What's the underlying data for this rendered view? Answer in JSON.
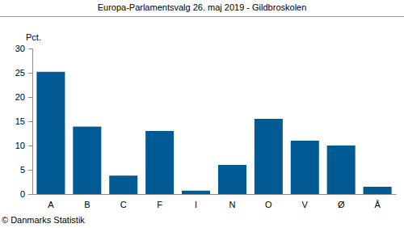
{
  "chart_data": {
    "type": "bar",
    "title": "Europa-Parlamentsvalg 26. maj 2019 - Gildbroskolen",
    "y_label": "Pct.",
    "footer": "© Danmarks Statistik",
    "categories": [
      "A",
      "B",
      "C",
      "F",
      "I",
      "N",
      "O",
      "V",
      "Ø",
      "Å"
    ],
    "values": [
      25.2,
      13.9,
      3.8,
      13.0,
      0.7,
      6.0,
      15.5,
      11.0,
      10.0,
      1.5
    ],
    "color": "#005a93",
    "ylim": [
      0,
      30
    ],
    "yticks": [
      0,
      5,
      10,
      15,
      20,
      25,
      30
    ],
    "grid": false
  }
}
